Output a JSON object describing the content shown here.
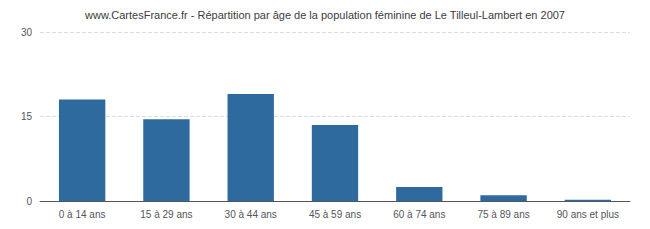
{
  "chart_data": {
    "type": "bar",
    "title": "www.CartesFrance.fr - Répartition par âge de la population féminine de Le Tilleul-Lambert en 2007",
    "categories": [
      "0 à 14 ans",
      "15 à 29 ans",
      "30 à 44 ans",
      "45 à 59 ans",
      "60 à 74 ans",
      "75 à 89 ans",
      "90 ans et plus"
    ],
    "values": [
      18,
      14.5,
      19,
      13.5,
      2.5,
      1.0,
      0.2
    ],
    "color": "#2e6a9e",
    "ylim": [
      0,
      30
    ],
    "yticks": [
      0,
      15,
      30
    ],
    "grid": true
  }
}
